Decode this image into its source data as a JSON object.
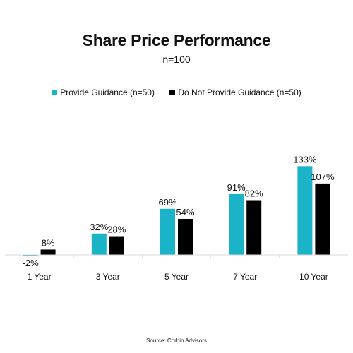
{
  "chart_data": {
    "type": "bar",
    "title": "Share Price Performance",
    "subtitle": "n=100",
    "categories": [
      "1 Year",
      "3 Year",
      "5 Year",
      "7 Year",
      "10 Year"
    ],
    "series": [
      {
        "name": "Provide Guidance (n=50)",
        "color": "#1ab3c8",
        "values": [
          -2,
          32,
          69,
          91,
          133
        ],
        "labels": [
          "-2%",
          "32%",
          "69%",
          "91%",
          "133%"
        ]
      },
      {
        "name": "Do Not Provide Guidance (n=50)",
        "color": "#000000",
        "values": [
          8,
          28,
          54,
          82,
          107
        ],
        "labels": [
          "8%",
          "28%",
          "54%",
          "82%",
          "107%"
        ]
      }
    ],
    "ylim": [
      -5,
      140
    ],
    "grid": false,
    "legend_position": "top",
    "source": "Source: Corbin Advisors"
  }
}
